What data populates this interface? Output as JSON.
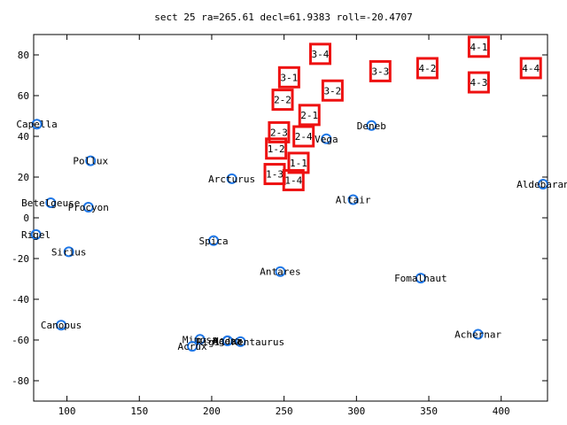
{
  "chart_data": {
    "type": "scatter",
    "title": "sect 25 ra=265.61 decl=61.9383 roll=-20.4707",
    "xlabel": "",
    "ylabel": "",
    "xlim": [
      77,
      432
    ],
    "ylim": [
      -90,
      90
    ],
    "xticks": [
      100,
      150,
      200,
      250,
      300,
      350,
      400
    ],
    "yticks": [
      -80,
      -60,
      -40,
      -20,
      0,
      20,
      40,
      60,
      80
    ],
    "grid": false,
    "legend": "none",
    "colors": {
      "stars": "#1f77e6",
      "boxes": "#ee1111",
      "axes": "#000000"
    },
    "series": [
      {
        "kind": "stars",
        "points": [
          {
            "label": "Capella",
            "x": 79.2,
            "y": 46.0
          },
          {
            "label": "Pollux",
            "x": 116.3,
            "y": 28.0
          },
          {
            "label": "Betelgeuse",
            "x": 88.8,
            "y": 7.4
          },
          {
            "label": "Procyon",
            "x": 114.8,
            "y": 5.2
          },
          {
            "label": "Rigel",
            "x": 78.6,
            "y": -8.2
          },
          {
            "label": "Sirius",
            "x": 101.3,
            "y": -16.7
          },
          {
            "label": "Canopus",
            "x": 96.0,
            "y": -52.7
          },
          {
            "label": "Arcturus",
            "x": 213.9,
            "y": 19.2
          },
          {
            "label": "Spica",
            "x": 201.3,
            "y": -11.2
          },
          {
            "label": "Antares",
            "x": 247.4,
            "y": -26.4
          },
          {
            "label": "Vega",
            "x": 279.2,
            "y": 38.8
          },
          {
            "label": "Deneb",
            "x": 310.4,
            "y": 45.3
          },
          {
            "label": "Altair",
            "x": 297.7,
            "y": 8.9
          },
          {
            "label": "Fomalhaut",
            "x": 344.4,
            "y": -29.6
          },
          {
            "label": "Achernar",
            "x": 384.0,
            "y": -57.2
          },
          {
            "label": "Aldebaran",
            "x": 428.9,
            "y": 16.5
          },
          {
            "label": "Mimosa",
            "x": 191.9,
            "y": -59.7
          },
          {
            "label": "Acrux",
            "x": 186.6,
            "y": -63.1
          },
          {
            "label": "Hadar",
            "x": 210.9,
            "y": -60.4
          },
          {
            "label": "Rigil Kentaurus",
            "x": 219.9,
            "y": -60.8
          },
          {
            "label": "Agena",
            "x": 210.9,
            "y": -60.4
          }
        ]
      },
      {
        "kind": "sectors",
        "points": [
          {
            "label": "1-1",
            "x": 260.0,
            "y": 27.0
          },
          {
            "label": "1-2",
            "x": 244.5,
            "y": 34.0
          },
          {
            "label": "1-3",
            "x": 243.5,
            "y": 21.5
          },
          {
            "label": "1-4",
            "x": 256.5,
            "y": 18.5
          },
          {
            "label": "2-1",
            "x": 267.5,
            "y": 50.5
          },
          {
            "label": "2-2",
            "x": 249.0,
            "y": 58.0
          },
          {
            "label": "2-3",
            "x": 246.5,
            "y": 42.0
          },
          {
            "label": "2-4",
            "x": 263.5,
            "y": 40.0
          },
          {
            "label": "3-1",
            "x": 253.5,
            "y": 69.0
          },
          {
            "label": "3-2",
            "x": 283.5,
            "y": 62.5
          },
          {
            "label": "3-3",
            "x": 316.5,
            "y": 72.0
          },
          {
            "label": "3-4",
            "x": 275.0,
            "y": 80.5
          },
          {
            "label": "4-1",
            "x": 384.5,
            "y": 84.0
          },
          {
            "label": "4-2",
            "x": 349.0,
            "y": 73.5
          },
          {
            "label": "4-3",
            "x": 384.5,
            "y": 66.5
          },
          {
            "label": "4-4",
            "x": 420.5,
            "y": 73.5
          }
        ]
      }
    ],
    "star_label_text": {
      "Capella": "Capella",
      "Pollux": "Pollux",
      "Betelgeuse": "Betelgeuse",
      "Procyon": "Procyon",
      "Rigel": "Rigel",
      "Sirius": "Sirius",
      "Canopus": "Canopus",
      "Arcturus": "Arcturus",
      "Spica": "Spica",
      "Antares": "Antares",
      "Vega": "Vega",
      "Deneb": "Deneb",
      "Altair": "Altair",
      "Fomalhaut": "Fomalhaut",
      "Achernar": "Achernar",
      "Aldebaran": "Aldebaran",
      "Mimosa": "Mimosa",
      "Acrux": "Acrux",
      "Hadar": "Hadar",
      "Rigil Kentaurus": "Rigil Kentaurus",
      "Agena": "Agena"
    }
  }
}
